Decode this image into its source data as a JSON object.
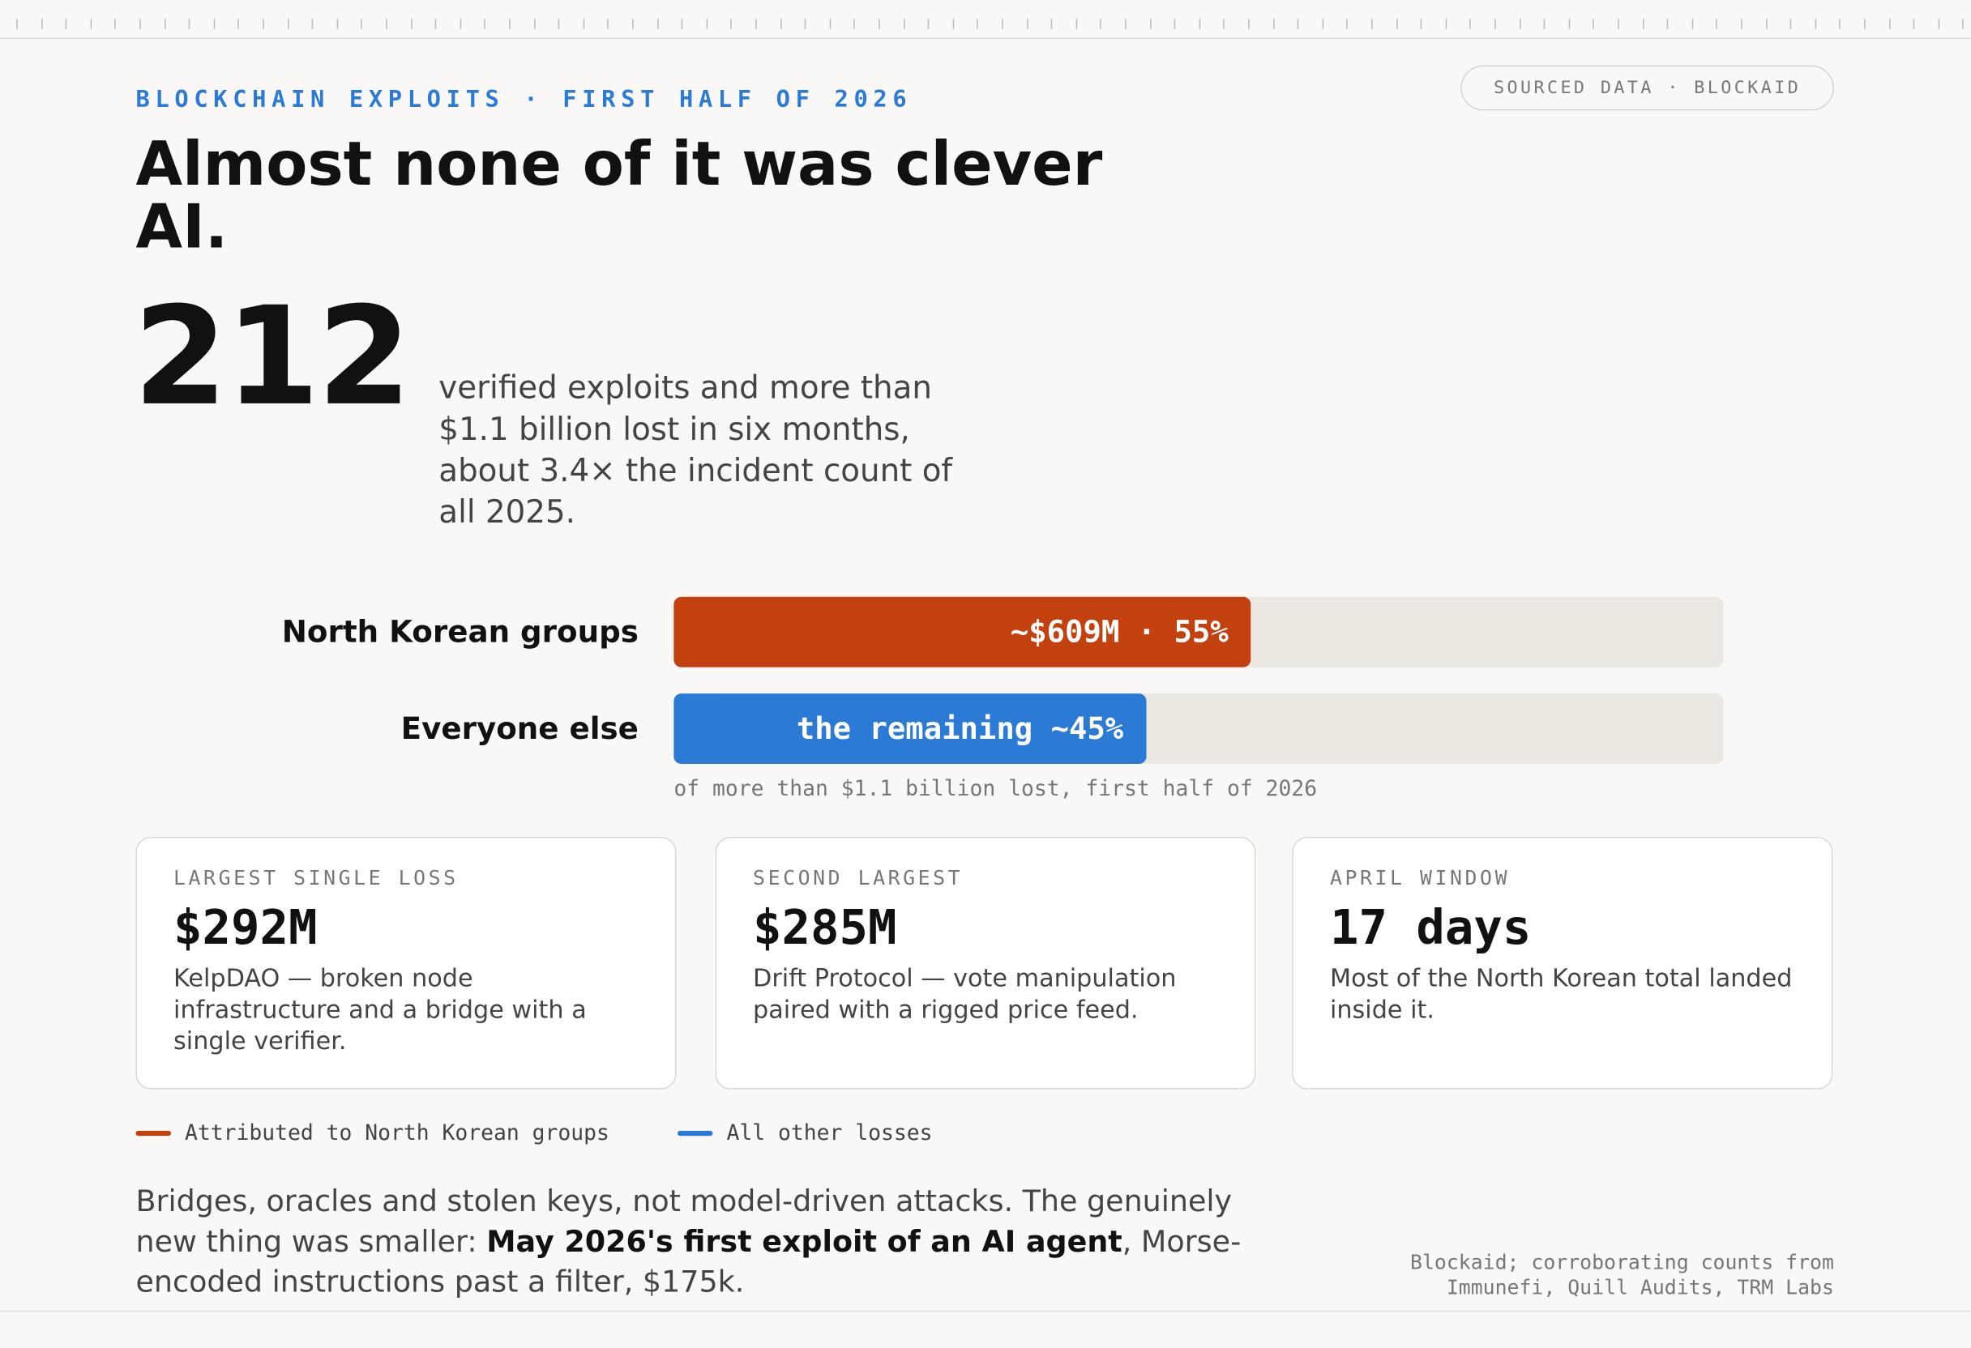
{
  "header": {
    "kicker": "BLOCKCHAIN EXPLOITS · FIRST HALF OF 2026",
    "title": "Almost none of it was clever AI.",
    "badge": "SOURCED DATA · BLOCKAID"
  },
  "headline": {
    "number": 212,
    "text": "verified exploits and more than $1.1 billion lost in six months, about 3.4× the incident count of all 2025."
  },
  "chart_data": {
    "type": "bar",
    "orientation": "horizontal",
    "categories": [
      "North Korean groups",
      "Everyone else"
    ],
    "values": [
      55,
      45
    ],
    "value_labels": [
      "~$609M · 55%",
      "the remaining ~45%"
    ],
    "colors": [
      "#c2410f",
      "#2b7bd6"
    ],
    "xlim": [
      0,
      100
    ],
    "note": "of more than $1.1 billion lost, first half of 2026",
    "legend": [
      "Attributed to North Korean groups",
      "All other losses"
    ]
  },
  "cards": [
    {
      "label": "LARGEST SINGLE LOSS",
      "value": "$292M",
      "text": "KelpDAO — broken node infrastructure and a bridge with a single verifier."
    },
    {
      "label": "SECOND LARGEST",
      "value": "$285M",
      "text": "Drift Protocol — vote manipulation paired with a rigged price feed."
    },
    {
      "label": "APRIL WINDOW",
      "value": "17 days",
      "text": "Most of the North Korean total landed inside it."
    }
  ],
  "footer": {
    "text_before": "Bridges, oracles and stolen keys, not model-driven attacks. The genuinely new thing was smaller: ",
    "text_bold": "May 2026's first exploit of an AI agent",
    "text_after": ", Morse-encoded instructions past a filter, $175k.",
    "source": "Blockaid; corroborating counts from Immunefi, Quill Audits, TRM Labs"
  }
}
